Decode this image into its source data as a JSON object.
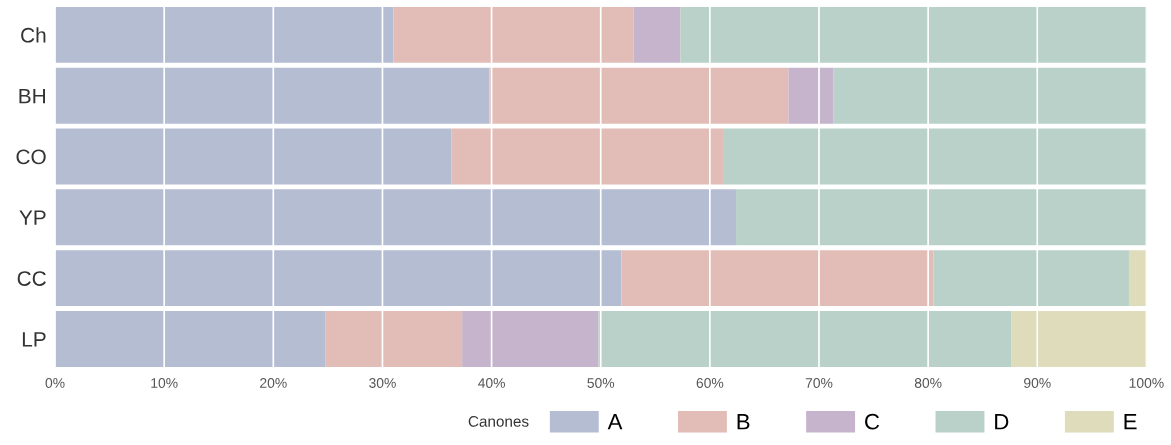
{
  "chart_data": {
    "type": "bar",
    "orientation": "horizontal",
    "stacked": true,
    "categories": [
      "Ch",
      "BH",
      "CO",
      "YP",
      "CC",
      "LP"
    ],
    "series": [
      {
        "name": "A",
        "color": "#b5bdd3",
        "values": [
          31,
          39.8,
          36.3,
          62.4,
          51.9,
          24.8
        ]
      },
      {
        "name": "B",
        "color": "#e2bcb7",
        "values": [
          22,
          27.4,
          24.9,
          null,
          28.6,
          12.5
        ]
      },
      {
        "name": "C",
        "color": "#c6b3cc",
        "values": [
          4.3,
          4.1,
          null,
          null,
          null,
          12.5
        ]
      },
      {
        "name": "D",
        "color": "#b9d1c8",
        "values": [
          42.7,
          28.7,
          38.8,
          37.6,
          17.9,
          37.8
        ]
      },
      {
        "name": "E",
        "color": "#dedcbb",
        "values": [
          null,
          null,
          null,
          null,
          1.6,
          12.4
        ]
      }
    ],
    "xlim": [
      0,
      100
    ],
    "xticks": [
      {
        "value": 0,
        "label": "0%"
      },
      {
        "value": 10,
        "label": "10%"
      },
      {
        "value": 20,
        "label": "20%"
      },
      {
        "value": 30,
        "label": "30%"
      },
      {
        "value": 40,
        "label": "40%"
      },
      {
        "value": 50,
        "label": "50%"
      },
      {
        "value": 60,
        "label": "60%"
      },
      {
        "value": 70,
        "label": "70%"
      },
      {
        "value": 80,
        "label": "80%"
      },
      {
        "value": 90,
        "label": "90%"
      },
      {
        "value": 100,
        "label": "100%"
      }
    ],
    "grid": "x",
    "legend": "bottom right",
    "legend_title": "Canones"
  }
}
